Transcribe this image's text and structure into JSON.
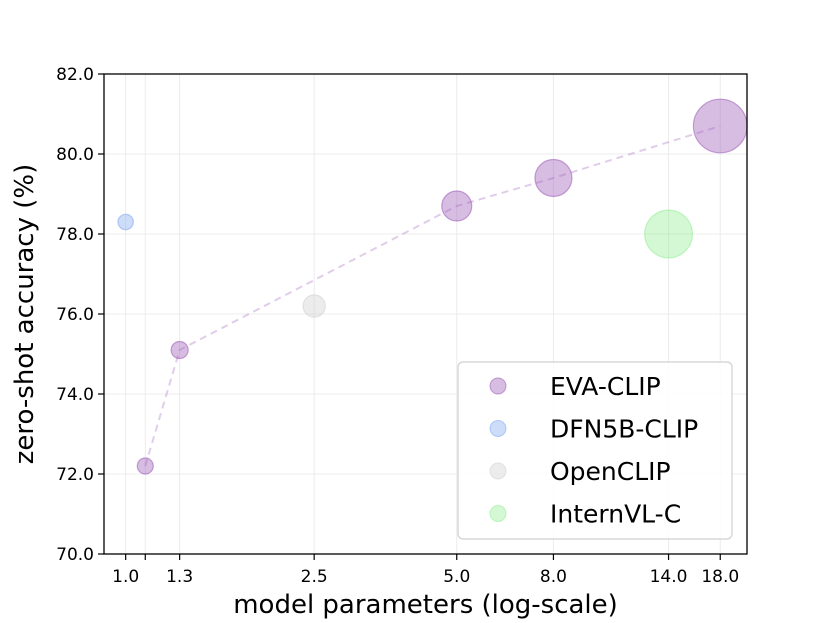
{
  "chart_data": {
    "type": "scatter",
    "title": "",
    "xlabel": "model parameters (log-scale)",
    "ylabel": "zero-shot accuracy (%)",
    "xscale": "log",
    "xlim": [
      0.9,
      20.5
    ],
    "ylim": [
      70.0,
      82.0
    ],
    "grid": true,
    "legend_position": "bottom-right",
    "xticks": [
      1.0,
      1.1,
      1.3,
      2.5,
      5.0,
      8.0,
      14.0,
      18.0
    ],
    "xtick_labels": [
      "1.0",
      "",
      "1.3",
      "2.5",
      "5.0",
      "8.0",
      "14.0",
      "18.0"
    ],
    "yticks": [
      70.0,
      72.0,
      74.0,
      76.0,
      78.0,
      80.0,
      82.0
    ],
    "ytick_labels": [
      "70.0",
      "72.0",
      "74.0",
      "76.0",
      "78.0",
      "80.0",
      "82.0"
    ],
    "series": [
      {
        "name": "EVA-CLIP",
        "color": "#9B59B6",
        "line": "dashed",
        "points": [
          {
            "x": 1.1,
            "y": 72.2,
            "params": 1.1
          },
          {
            "x": 1.3,
            "y": 75.1,
            "params": 1.3
          },
          {
            "x": 5.0,
            "y": 78.7,
            "params": 5.0
          },
          {
            "x": 8.0,
            "y": 79.4,
            "params": 8.0
          },
          {
            "x": 18.0,
            "y": 80.7,
            "params": 18.0
          }
        ]
      },
      {
        "name": "DFN5B-CLIP",
        "color": "#7FA8F0",
        "points": [
          {
            "x": 1.0,
            "y": 78.3,
            "params": 1.0
          }
        ]
      },
      {
        "name": "OpenCLIP",
        "color": "#CFCFCF",
        "points": [
          {
            "x": 2.5,
            "y": 76.2,
            "params": 2.5
          }
        ]
      },
      {
        "name": "InternVL-C",
        "color": "#90EE90",
        "points": [
          {
            "x": 14.0,
            "y": 78.0,
            "params": 14.0
          }
        ]
      }
    ]
  }
}
